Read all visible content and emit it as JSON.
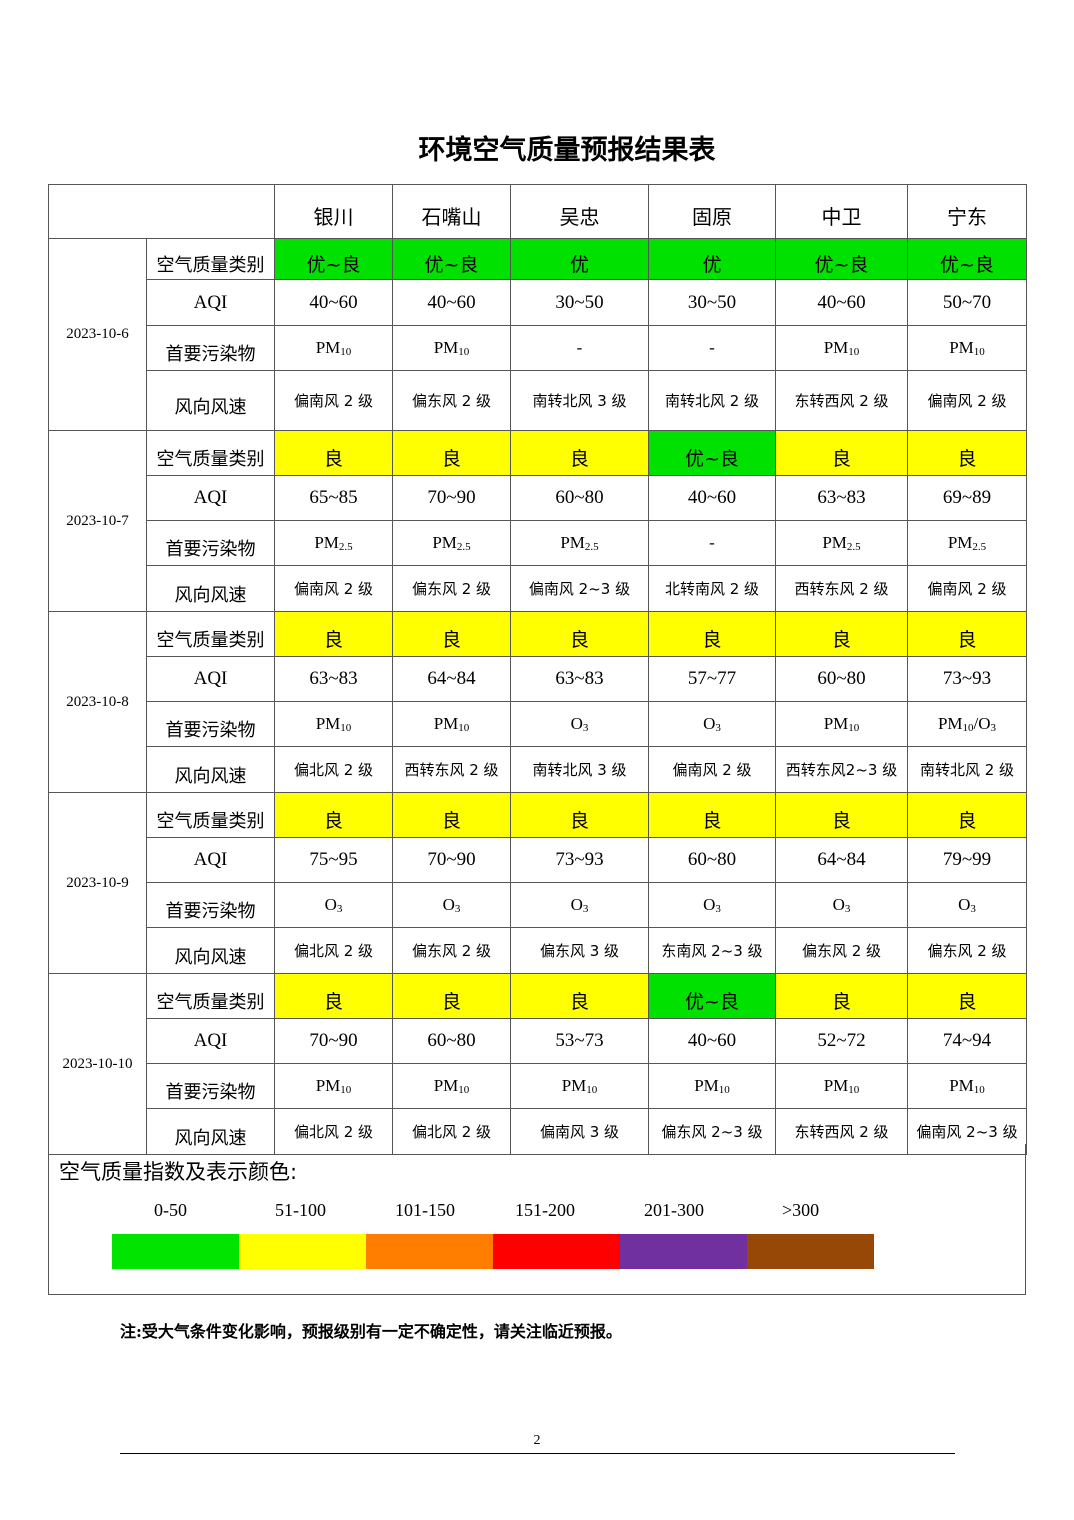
{
  "title": "环境空气质量预报结果表",
  "cities": [
    "银川",
    "石嘴山",
    "吴忠",
    "固原",
    "中卫",
    "宁东"
  ],
  "row_labels": {
    "quality": "空气质量类别",
    "aqi": "AQI",
    "pollutant": "首要污染物",
    "wind": "风向风速"
  },
  "colors": {
    "优~良": "#00e100",
    "优": "#00e100",
    "良": "#ffff00"
  },
  "days": [
    {
      "date": "2023-10-6",
      "quality": [
        "优~良",
        "优~良",
        "优",
        "优",
        "优~良",
        "优~良"
      ],
      "aqi": [
        "40~60",
        "40~60",
        "30~50",
        "30~50",
        "40~60",
        "50~70"
      ],
      "pollutant": [
        [
          {
            "t": "PM"
          },
          {
            "t": "10",
            "sub": true
          }
        ],
        [
          {
            "t": "PM"
          },
          {
            "t": "10",
            "sub": true
          }
        ],
        [
          {
            "t": "-"
          }
        ],
        [
          {
            "t": "-"
          }
        ],
        [
          {
            "t": "PM"
          },
          {
            "t": "10",
            "sub": true
          }
        ],
        [
          {
            "t": "PM"
          },
          {
            "t": "10",
            "sub": true
          }
        ]
      ],
      "wind": [
        "偏南风 2 级",
        "偏东风 2 级",
        "南转北风 3 级",
        "南转北风 2 级",
        "东转西风 2 级",
        "偏南风 2 级"
      ]
    },
    {
      "date": "2023-10-7",
      "quality": [
        "良",
        "良",
        "良",
        "优~良",
        "良",
        "良"
      ],
      "aqi": [
        "65~85",
        "70~90",
        "60~80",
        "40~60",
        "63~83",
        "69~89"
      ],
      "pollutant": [
        [
          {
            "t": "PM"
          },
          {
            "t": "2.5",
            "sub": true
          }
        ],
        [
          {
            "t": "PM"
          },
          {
            "t": "2.5",
            "sub": true
          }
        ],
        [
          {
            "t": "PM"
          },
          {
            "t": "2.5",
            "sub": true
          }
        ],
        [
          {
            "t": "-"
          }
        ],
        [
          {
            "t": "PM"
          },
          {
            "t": "2.5",
            "sub": true
          }
        ],
        [
          {
            "t": "PM"
          },
          {
            "t": "2.5",
            "sub": true
          }
        ]
      ],
      "wind": [
        "偏南风 2 级",
        "偏东风 2 级",
        "偏南风 2~3 级",
        "北转南风 2 级",
        "西转东风 2 级",
        "偏南风 2 级"
      ]
    },
    {
      "date": "2023-10-8",
      "quality": [
        "良",
        "良",
        "良",
        "良",
        "良",
        "良"
      ],
      "aqi": [
        "63~83",
        "64~84",
        "63~83",
        "57~77",
        "60~80",
        "73~93"
      ],
      "pollutant": [
        [
          {
            "t": "PM"
          },
          {
            "t": "10",
            "sub": true
          }
        ],
        [
          {
            "t": "PM"
          },
          {
            "t": "10",
            "sub": true
          }
        ],
        [
          {
            "t": "O"
          },
          {
            "t": "3",
            "sub": true
          }
        ],
        [
          {
            "t": "O"
          },
          {
            "t": "3",
            "sub": true
          }
        ],
        [
          {
            "t": "PM"
          },
          {
            "t": "10",
            "sub": true
          }
        ],
        [
          {
            "t": "PM"
          },
          {
            "t": "10",
            "sub": true
          },
          {
            "t": "/O"
          },
          {
            "t": "3",
            "sub": true
          }
        ]
      ],
      "wind": [
        "偏北风 2 级",
        "西转东风 2 级",
        "南转北风 3 级",
        "偏南风 2 级",
        "西转东风2~3 级",
        "南转北风 2 级"
      ]
    },
    {
      "date": "2023-10-9",
      "quality": [
        "良",
        "良",
        "良",
        "良",
        "良",
        "良"
      ],
      "aqi": [
        "75~95",
        "70~90",
        "73~93",
        "60~80",
        "64~84",
        "79~99"
      ],
      "pollutant": [
        [
          {
            "t": "O"
          },
          {
            "t": "3",
            "sub": true
          }
        ],
        [
          {
            "t": "O"
          },
          {
            "t": "3",
            "sub": true
          }
        ],
        [
          {
            "t": "O"
          },
          {
            "t": "3",
            "sub": true
          }
        ],
        [
          {
            "t": "O"
          },
          {
            "t": "3",
            "sub": true
          }
        ],
        [
          {
            "t": "O"
          },
          {
            "t": "3",
            "sub": true
          }
        ],
        [
          {
            "t": "O"
          },
          {
            "t": "3",
            "sub": true
          }
        ]
      ],
      "wind": [
        "偏北风 2 级",
        "偏东风 2 级",
        "偏东风 3 级",
        "东南风 2~3 级",
        "偏东风 2 级",
        "偏东风 2 级"
      ]
    },
    {
      "date": "2023-10-10",
      "quality": [
        "良",
        "良",
        "良",
        "优~良",
        "良",
        "良"
      ],
      "aqi": [
        "70~90",
        "60~80",
        "53~73",
        "40~60",
        "52~72",
        "74~94"
      ],
      "pollutant": [
        [
          {
            "t": "PM"
          },
          {
            "t": "10",
            "sub": true
          }
        ],
        [
          {
            "t": "PM"
          },
          {
            "t": "10",
            "sub": true
          }
        ],
        [
          {
            "t": "PM"
          },
          {
            "t": "10",
            "sub": true
          }
        ],
        [
          {
            "t": "PM"
          },
          {
            "t": "10",
            "sub": true
          }
        ],
        [
          {
            "t": "PM"
          },
          {
            "t": "10",
            "sub": true
          }
        ],
        [
          {
            "t": "PM"
          },
          {
            "t": "10",
            "sub": true
          }
        ]
      ],
      "wind": [
        "偏北风 2 级",
        "偏北风 2 级",
        "偏南风 3 级",
        "偏东风 2~3 级",
        "东转西风 2 级",
        "偏南风 2~3 级"
      ]
    }
  ],
  "legend": {
    "title": "空气质量指数及表示颜色:",
    "ranges": [
      {
        "label": "0-50",
        "color": "#00e400"
      },
      {
        "label": "51-100",
        "color": "#ffff00"
      },
      {
        "label": "101-150",
        "color": "#ff7e00"
      },
      {
        "label": "151-200",
        "color": "#ff0000"
      },
      {
        "label": "201-300",
        "color": "#7030a0"
      },
      {
        "label": ">300",
        "color": "#974706"
      }
    ]
  },
  "note": "注:受大气条件变化影响，预报级别有一定不确定性，请关注临近预报。",
  "page_number": "2"
}
